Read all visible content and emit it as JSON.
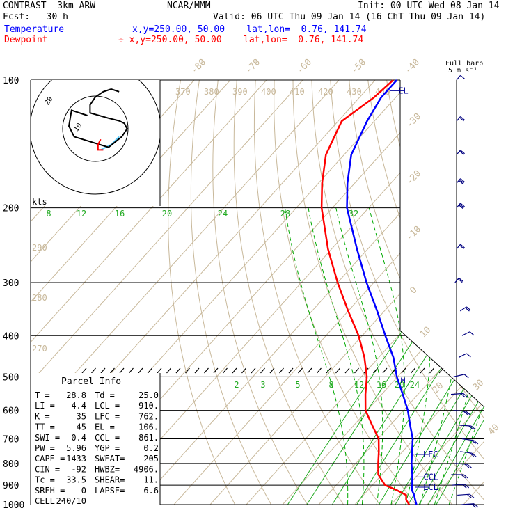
{
  "header": {
    "line1_left": "CONTRAST  3km ARW",
    "line1_center": "NCAR/MMM",
    "line1_right": "Init: 00 UTC Wed 08 Jan 14",
    "line2_left": "Fcst:   30 h",
    "line2_right": "Valid: 06 UTC Thu 09 Jan 14 (16 ChT Thu 09 Jan 14)",
    "temp_label": "Temperature",
    "temp_loc": "x,y=250.00, 50.00    lat,lon=  0.76, 141.74",
    "dew_label": "Dewpoint",
    "dew_loc": "☆ x,y=250.00, 50.00    lat,lon=  0.76, 141.74",
    "temp_color": "#0000ff",
    "dew_color": "#ff0000"
  },
  "barb_title": "Full barb",
  "barb_units": "5 m s⁻¹",
  "hodo_units": "kts",
  "hodo_rings": [
    "10",
    "20"
  ],
  "parcel": {
    "title": "Parcel Info",
    "rows": [
      [
        "T  =",
        "28.8",
        "Td =",
        "25.0"
      ],
      [
        "LI =",
        "-4.4",
        "LCL =",
        "910."
      ],
      [
        "K  =",
        "35",
        "LFC =",
        "762."
      ],
      [
        "TT =",
        "45",
        "EL  =",
        "106."
      ],
      [
        "SWI =",
        "-0.4",
        "CCL =",
        "861."
      ],
      [
        "PW =",
        "5.96",
        "YGP =",
        "0.2"
      ],
      [
        "CAPE =",
        "1433",
        "SWEAT=",
        "205"
      ],
      [
        "CIN =",
        "-92",
        "HWBZ=",
        "4906."
      ],
      [
        "Tc =",
        "33.5",
        "SHEAR=",
        "11."
      ],
      [
        "SREH =",
        "0",
        "LAPSE=",
        "6.6"
      ],
      [
        "CELL =",
        "240/10",
        "",
        ""
      ]
    ]
  },
  "chart_data": {
    "type": "line",
    "title": "",
    "xlabel": "",
    "ylabel": "",
    "pressure_axis": [
      100,
      200,
      300,
      400,
      500,
      600,
      700,
      800,
      900,
      1000
    ],
    "dry_adiabat_labels": [
      "370",
      "380",
      "390",
      "400",
      "410",
      "420",
      "430",
      "440",
      "290",
      "280",
      "270"
    ],
    "mixing_ratio_upper": [
      "8",
      "12",
      "16",
      "20",
      "24",
      "28",
      "32"
    ],
    "mixing_ratio_lower": [
      "2",
      "3",
      "5",
      "8",
      "12",
      "16",
      "20",
      "24"
    ],
    "isotherm_labels": [
      "-80",
      "-70",
      "-60",
      "-50",
      "-40",
      "-30",
      "-20",
      "-10",
      "0",
      "10",
      "20",
      "30",
      "40"
    ],
    "level_markers": {
      "EL": 106,
      "M": 510,
      "LFC": 762,
      "CCL": 861,
      "LCL": 910
    },
    "series": [
      {
        "name": "Temperature",
        "color": "#0000ff",
        "points": [
          [
            1000,
            27.0
          ],
          [
            975,
            25.5
          ],
          [
            950,
            24.0
          ],
          [
            925,
            22.2
          ],
          [
            900,
            21.0
          ],
          [
            850,
            18.4
          ],
          [
            800,
            15.4
          ],
          [
            750,
            12.6
          ],
          [
            700,
            9.6
          ],
          [
            650,
            5.5
          ],
          [
            600,
            1.2
          ],
          [
            550,
            -4.2
          ],
          [
            500,
            -10.2
          ],
          [
            450,
            -16.0
          ],
          [
            400,
            -23.6
          ],
          [
            350,
            -32.0
          ],
          [
            300,
            -42.0
          ],
          [
            250,
            -53.0
          ],
          [
            200,
            -66.0
          ],
          [
            175,
            -72.0
          ],
          [
            150,
            -78.0
          ],
          [
            125,
            -82.0
          ],
          [
            110,
            -84.0
          ],
          [
            100,
            -84.0
          ]
        ]
      },
      {
        "name": "Dewpoint",
        "color": "#ff0000",
        "points": [
          [
            1000,
            25.0
          ],
          [
            975,
            23.0
          ],
          [
            950,
            21.8
          ],
          [
            925,
            18.0
          ],
          [
            900,
            13.5
          ],
          [
            850,
            9.0
          ],
          [
            800,
            6.2
          ],
          [
            750,
            3.4
          ],
          [
            700,
            0.2
          ],
          [
            650,
            -5.0
          ],
          [
            600,
            -10.5
          ],
          [
            550,
            -14.5
          ],
          [
            500,
            -18.5
          ],
          [
            450,
            -24.0
          ],
          [
            400,
            -31.0
          ],
          [
            350,
            -40.0
          ],
          [
            300,
            -50.0
          ],
          [
            250,
            -61.0
          ],
          [
            200,
            -73.0
          ],
          [
            175,
            -79.0
          ],
          [
            150,
            -85.0
          ],
          [
            125,
            -89.0
          ],
          [
            110,
            -86.0
          ],
          [
            100,
            -85.0
          ]
        ]
      }
    ],
    "hodograph": {
      "black": [
        [
          -3,
          5
        ],
        [
          -9,
          7
        ],
        [
          -10,
          1
        ],
        [
          -8,
          -3
        ],
        [
          5,
          -7
        ],
        [
          10,
          -3
        ],
        [
          12,
          0
        ],
        [
          11,
          2
        ],
        [
          9,
          3
        ],
        [
          5,
          4
        ],
        [
          -2,
          6
        ],
        [
          -2,
          9
        ],
        [
          0,
          12
        ],
        [
          3,
          14
        ],
        [
          6,
          15
        ],
        [
          9,
          14
        ]
      ],
      "red": [
        [
          2,
          -4
        ],
        [
          1,
          -6
        ],
        [
          1,
          -8
        ],
        [
          3,
          -8
        ]
      ],
      "cyan": [
        [
          9,
          -3
        ],
        [
          6,
          -6
        ],
        [
          2,
          -8
        ]
      ]
    },
    "wind_barbs": [
      [
        100,
        18,
        5
      ],
      [
        125,
        18,
        10
      ],
      [
        150,
        18,
        10
      ],
      [
        175,
        18,
        15
      ],
      [
        200,
        18,
        15
      ],
      [
        250,
        18,
        10
      ],
      [
        300,
        18,
        10
      ],
      [
        350,
        30,
        10
      ],
      [
        400,
        38,
        5
      ],
      [
        450,
        38,
        5
      ],
      [
        500,
        60,
        5
      ],
      [
        550,
        80,
        10
      ],
      [
        600,
        100,
        10
      ],
      [
        650,
        100,
        10
      ],
      [
        700,
        110,
        10
      ],
      [
        750,
        110,
        10
      ],
      [
        800,
        100,
        10
      ],
      [
        850,
        90,
        10
      ],
      [
        900,
        80,
        10
      ],
      [
        950,
        80,
        10
      ],
      [
        1000,
        80,
        10
      ]
    ]
  }
}
